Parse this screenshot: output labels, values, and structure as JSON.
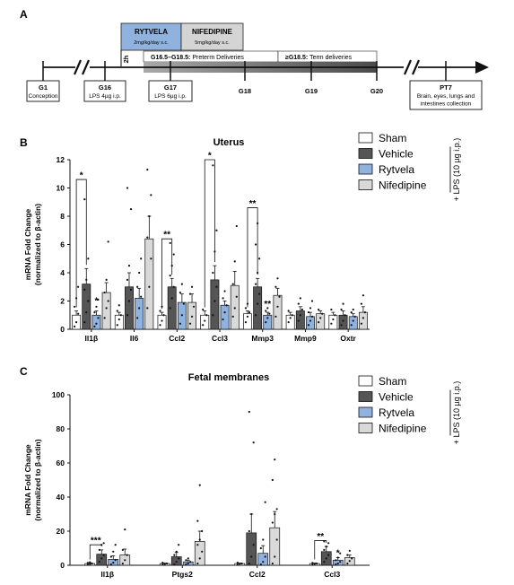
{
  "panels": {
    "a": {
      "label": "A"
    },
    "b": {
      "label": "B"
    },
    "c": {
      "label": "C"
    }
  },
  "timeline": {
    "treatments": [
      {
        "name": "RYTVELA",
        "dose": "2mg/kg/day s.c.",
        "color": "#8fb2de"
      },
      {
        "name": "NIFEDIPINE",
        "dose": "5mg/kg/day s.c.",
        "color": "#d4d4d4"
      }
    ],
    "delay": "2h",
    "phases": [
      {
        "label_bold": "G16.5–G18.5:",
        "label_rest": " Preterm Deliveries",
        "color": "#666666"
      },
      {
        "label_bold": "≥G18.5:",
        "label_rest": " Term deliveries",
        "color": "#555555"
      }
    ],
    "events": [
      {
        "day": "G1",
        "desc": [
          "Conception"
        ]
      },
      {
        "day": "G16",
        "desc": [
          "LPS 4µg i.p."
        ]
      },
      {
        "day": "G17",
        "desc": [
          "LPS 6µg i.p."
        ]
      },
      {
        "day": "G18",
        "desc": []
      },
      {
        "day": "G19",
        "desc": []
      },
      {
        "day": "G20",
        "desc": []
      },
      {
        "day": "PT7",
        "desc": [
          "Brain, eyes, lungs and",
          "intestines collection"
        ]
      }
    ]
  },
  "legend": {
    "lps_label": "+ LPS (10 µg i.p.)"
  },
  "chart_data": [
    {
      "type": "bar",
      "title": "Uterus",
      "ylabel": [
        "mRNA Fold Change",
        "(normalized to β-actin)"
      ],
      "ylim": [
        0,
        12
      ],
      "yticks": [
        0,
        2,
        4,
        6,
        8,
        10,
        12
      ],
      "categories": [
        "Il1β",
        "Il6",
        "Ccl2",
        "Ccl3",
        "Mmp3",
        "Mmp9",
        "Oxtr"
      ],
      "series": [
        {
          "name": "Sham",
          "color": "#ffffff",
          "values": [
            1.0,
            1.0,
            1.0,
            1.0,
            1.1,
            1.0,
            1.0
          ],
          "errors": [
            0.3,
            0.2,
            0.2,
            0.3,
            0.2,
            0.2,
            0.2
          ]
        },
        {
          "name": "Vehicle",
          "color": "#555555",
          "values": [
            3.2,
            3.0,
            3.0,
            3.5,
            3.0,
            1.3,
            1.0
          ],
          "errors": [
            1.1,
            1.0,
            0.6,
            1.0,
            0.6,
            0.3,
            0.3
          ]
        },
        {
          "name": "Rytvela",
          "color": "#8fb2de",
          "values": [
            1.0,
            2.2,
            1.9,
            1.7,
            1.0,
            0.9,
            0.9
          ],
          "errors": [
            0.3,
            0.7,
            0.6,
            0.3,
            0.2,
            0.3,
            0.2
          ]
        },
        {
          "name": "Nifedipine",
          "color": "#d9d9d9",
          "values": [
            2.6,
            6.4,
            1.9,
            3.1,
            2.4,
            1.1,
            1.2
          ],
          "errors": [
            0.7,
            1.6,
            0.6,
            1.0,
            0.5,
            0.2,
            0.4
          ]
        }
      ],
      "significance": [
        {
          "category": "Il1β",
          "from": "Sham",
          "to": "Vehicle",
          "label": "*",
          "y": 10.6
        },
        {
          "category": "Ccl2",
          "from": "Sham",
          "to": "Vehicle",
          "label": "**",
          "y": 6.4
        },
        {
          "category": "Ccl3",
          "from": "Sham",
          "to": "Vehicle",
          "label": "*",
          "y": 12.0
        },
        {
          "category": "Mmp3",
          "from": "Sham",
          "to": "Vehicle",
          "label": "**",
          "y": 8.6
        }
      ],
      "group_marks": [
        {
          "category": "Il1β",
          "series": "Rytvela",
          "label": "*",
          "y": 1.8
        },
        {
          "category": "Mmp3",
          "series": "Rytvela",
          "label": "**",
          "y": 1.6
        }
      ],
      "points": {
        "Il1β": [
          [
            0.2,
            0.5,
            1.1,
            1.6,
            2.2,
            3.0
          ],
          [
            0.5,
            1.2,
            2.0,
            2.8,
            3.5,
            5.0,
            9.2
          ],
          [
            0.2,
            0.4,
            0.8,
            1.2,
            1.6,
            2.1
          ],
          [
            0.8,
            1.5,
            2.0,
            2.6,
            3.5,
            6.2
          ]
        ],
        "Il6": [
          [
            0.3,
            0.7,
            1.0,
            1.3,
            1.7
          ],
          [
            1.0,
            2.0,
            2.8,
            3.5,
            4.5,
            8.5,
            10.0
          ],
          [
            0.8,
            1.5,
            2.3,
            3.0,
            4.0,
            5.0
          ],
          [
            1.5,
            3.0,
            5.0,
            6.5,
            8.0,
            9.5,
            11.3
          ]
        ],
        "Ccl2": [
          [
            0.3,
            0.6,
            1.0,
            1.3,
            1.6
          ],
          [
            1.5,
            2.2,
            3.0,
            3.8,
            4.5,
            5.3,
            6.1
          ],
          [
            0.4,
            1.0,
            1.8,
            2.6,
            3.2
          ],
          [
            0.4,
            0.9,
            1.6,
            2.5,
            3.0
          ]
        ],
        "Ccl3": [
          [
            0.3,
            0.6,
            1.0,
            1.4
          ],
          [
            1.0,
            2.0,
            3.0,
            4.0,
            5.5,
            7.0,
            11.6
          ],
          [
            0.7,
            1.2,
            1.7,
            2.2,
            2.7
          ],
          [
            0.9,
            1.5,
            2.3,
            3.2,
            4.8,
            7.3
          ]
        ],
        "Mmp3": [
          [
            0.5,
            0.9,
            1.2,
            1.5,
            1.8
          ],
          [
            1.0,
            1.8,
            2.5,
            3.2,
            4.0,
            5.0,
            6.0,
            7.5
          ],
          [
            0.5,
            0.8,
            1.1,
            1.3,
            1.5
          ],
          [
            0.9,
            1.6,
            2.3,
            3.0,
            3.6
          ]
        ],
        "Mmp9": [
          [
            0.5,
            0.8,
            1.0,
            1.3
          ],
          [
            0.6,
            1.0,
            1.4,
            1.8,
            2.2
          ],
          [
            0.3,
            0.6,
            0.9,
            1.2,
            1.5,
            2.0
          ],
          [
            0.5,
            0.8,
            1.1,
            1.4
          ]
        ],
        "Oxtr": [
          [
            0.4,
            0.7,
            1.0,
            1.4
          ],
          [
            0.3,
            0.6,
            1.0,
            1.4,
            1.8
          ],
          [
            0.3,
            0.6,
            0.9,
            1.2,
            1.4
          ],
          [
            0.4,
            0.8,
            1.2,
            1.8,
            2.4
          ]
        ]
      }
    },
    {
      "type": "bar",
      "title": "Fetal membranes",
      "ylabel": [
        "mRNA Fold Change",
        "(normalized to β-actin)"
      ],
      "ylim": [
        0,
        100
      ],
      "yticks": [
        0,
        20,
        40,
        60,
        80,
        100
      ],
      "categories": [
        "Il1β",
        "Ptgs2",
        "Ccl2",
        "Ccl3"
      ],
      "series": [
        {
          "name": "Sham",
          "color": "#ffffff",
          "values": [
            1.0,
            1.0,
            1.0,
            1.0
          ],
          "errors": [
            0.3,
            0.3,
            0.3,
            0.3
          ]
        },
        {
          "name": "Vehicle",
          "color": "#555555",
          "values": [
            6.5,
            5.0,
            19.0,
            8.0
          ],
          "errors": [
            2.5,
            2.5,
            11.0,
            3.0
          ]
        },
        {
          "name": "Rytvela",
          "color": "#8fb2de",
          "values": [
            3.5,
            2.0,
            7.0,
            3.0
          ],
          "errors": [
            2.0,
            1.0,
            4.5,
            1.5
          ]
        },
        {
          "name": "Nifedipine",
          "color": "#d9d9d9",
          "values": [
            6.0,
            14.0,
            22.0,
            4.5
          ],
          "errors": [
            3.5,
            6.0,
            9.5,
            1.5
          ]
        }
      ],
      "significance": [
        {
          "category": "Il1β",
          "from": "Sham",
          "to": "Vehicle",
          "label": "***",
          "y": 12.0
        },
        {
          "category": "Ccl3",
          "from": "Sham",
          "to": "Vehicle",
          "label": "**",
          "y": 14.5
        }
      ],
      "group_marks": [
        {
          "category": "Ccl3",
          "series": "Rytvela",
          "label": "*",
          "y": 5.5
        }
      ],
      "points": {
        "Il1β": [
          [
            0.3,
            0.6,
            1.0,
            1.4,
            1.8
          ],
          [
            2.0,
            4.0,
            6.0,
            9.0,
            12.0,
            13.0
          ],
          [
            0.5,
            1.5,
            3.0,
            5.0,
            8.0,
            12.0
          ],
          [
            1.0,
            3.0,
            6.0,
            9.0,
            21.0
          ]
        ],
        "Ptgs2": [
          [
            0.3,
            0.6,
            1.0,
            1.5
          ],
          [
            0.5,
            2.0,
            4.0,
            6.0,
            8.0,
            12.0
          ],
          [
            0.5,
            1.0,
            2.0,
            3.0,
            4.0
          ],
          [
            1.0,
            4.0,
            8.0,
            12.0,
            15.0,
            20.0,
            26.0,
            47.0
          ]
        ],
        "Ccl2": [
          [
            0.3,
            0.7,
            1.0,
            1.5
          ],
          [
            1.0,
            5.0,
            12.0,
            20.0,
            30.0,
            72.0,
            90.0
          ],
          [
            0.5,
            2.0,
            5.0,
            10.0,
            15.0,
            37.0
          ],
          [
            1.0,
            5.0,
            15.0,
            25.0,
            30.0,
            33.0,
            50.0,
            62.0
          ]
        ],
        "Ccl3": [
          [
            0.3,
            0.7,
            1.0,
            1.4
          ],
          [
            2.0,
            4.0,
            6.0,
            9.0,
            11.0,
            13.0,
            14.0
          ],
          [
            0.5,
            1.0,
            2.0,
            3.0,
            4.5,
            7.0
          ],
          [
            1.0,
            2.5,
            4.0,
            6.0,
            8.5
          ]
        ]
      }
    }
  ]
}
